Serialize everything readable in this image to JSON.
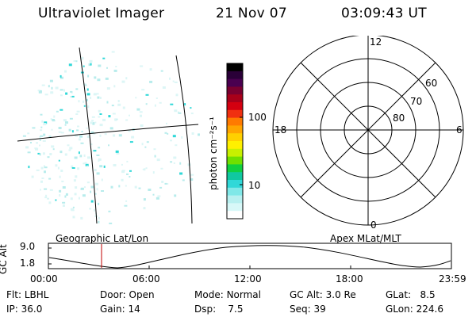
{
  "header": {
    "title": "Ultraviolet Imager",
    "date": "21 Nov 07",
    "time": "03:09:43 UT"
  },
  "colorbar": {
    "unit_label": "photon cm⁻²s⁻¹",
    "tick_labels": [
      "100",
      "10"
    ],
    "colors_top_to_bottom": [
      "#000000",
      "#2a0038",
      "#4a0050",
      "#7a0030",
      "#a8001a",
      "#d40010",
      "#f03010",
      "#ff7a00",
      "#ffa500",
      "#ffd000",
      "#fff000",
      "#c8f000",
      "#70e000",
      "#10d040",
      "#10c8a0",
      "#30d8d8",
      "#80e8e8",
      "#b8f0f0",
      "#d8f8f8",
      "#ffffff"
    ]
  },
  "polar_plot": {
    "top_label": "12",
    "bottom_label": "0",
    "left_label": "18",
    "right_label": "6",
    "lat_labels": [
      "60",
      "70",
      "80"
    ]
  },
  "timeline": {
    "ylabel": "GC Alt",
    "y_ticks": [
      "9.0",
      "1.8"
    ],
    "left_title": "Geographic Lat/Lon",
    "right_title": "Apex MLat/MLT",
    "x_ticks": [
      "00:00",
      "06:00",
      "12:00",
      "18:00",
      "23:59"
    ],
    "marker_color": "#c00000"
  },
  "info": {
    "row1": [
      {
        "label": "Flt:",
        "value": "LBHL"
      },
      {
        "label": "Door:",
        "value": "Open"
      },
      {
        "label": "Mode:",
        "value": "Normal"
      },
      {
        "label": "GC Alt:",
        "value": "3.0 Re"
      },
      {
        "label": "GLat:",
        "value": "8.5"
      }
    ],
    "row2": [
      {
        "label": "IP:",
        "value": "36.0"
      },
      {
        "label": "Gain:",
        "value": "14"
      },
      {
        "label": "Dsp:",
        "value": "7.5"
      },
      {
        "label": "Seq:",
        "value": "39"
      },
      {
        "label": "GLon:",
        "value": "224.6"
      }
    ]
  }
}
